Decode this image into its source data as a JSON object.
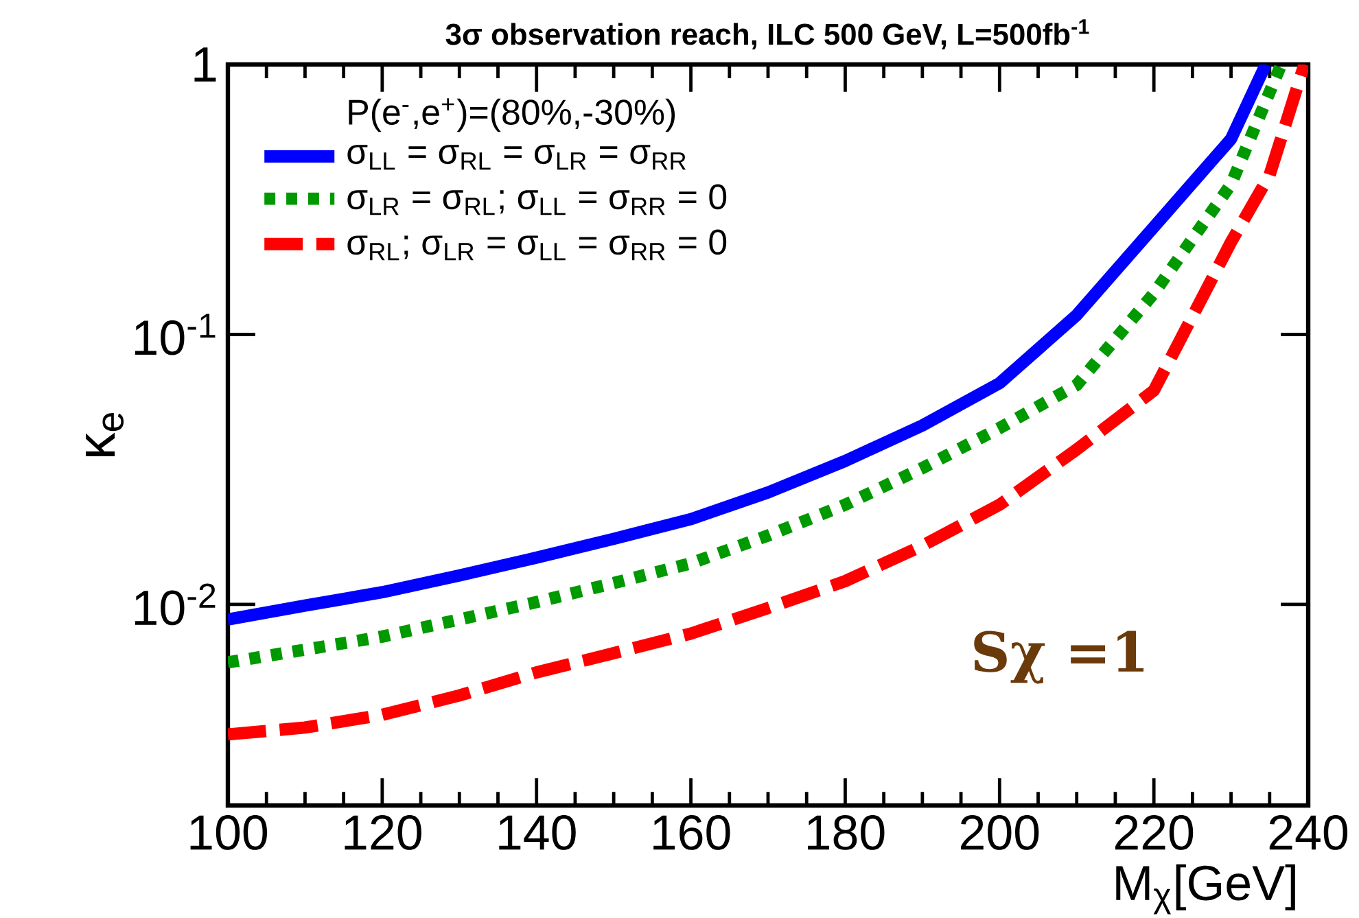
{
  "chart_data": {
    "type": "line",
    "title": "3σ observation reach, ILC 500 GeV, L=500fb$^{-1}$",
    "xlabel": "M$_{χ}$[GeV]",
    "ylabel": "κ$_{e}$",
    "legend_title": "P(e$^{-}$,e$^{+}$)=(80%,-30%)",
    "log": "y",
    "legend": "top left",
    "xlim": [
      100,
      240
    ],
    "ylim": [
      0.0018,
      1
    ],
    "xticks": [
      100,
      120,
      140,
      160,
      180,
      200,
      220,
      240
    ],
    "yticks": [
      {
        "value": 0.01,
        "label": "10$^{-2}$"
      },
      {
        "value": 0.1,
        "label": "10$^{-1}$"
      },
      {
        "value": 1,
        "label": "1"
      }
    ],
    "annotations": [
      "Sχ =1"
    ],
    "series": [
      {
        "name": "σ$_{LL}$  =  σ$_{RL}$ = σ$_{LR}$ = σ$_{RR}$",
        "color": "#0000ff",
        "line_style": "solid",
        "x": [
          100,
          110,
          120,
          130,
          140,
          150,
          160,
          170,
          180,
          190,
          200,
          210,
          220,
          230,
          234.5
        ],
        "values": [
          0.0088,
          0.0099,
          0.0111,
          0.0128,
          0.0149,
          0.0175,
          0.0207,
          0.026,
          0.034,
          0.046,
          0.066,
          0.118,
          0.25,
          0.53,
          1
        ]
      },
      {
        "name": "σ$_{LR}$  =  σ$_{RL}$;  σ$_{LL}$ = σ$_{RR}$ = 0",
        "color": "#009900",
        "line_style": "dotted",
        "x": [
          100,
          110,
          120,
          130,
          140,
          150,
          160,
          170,
          180,
          190,
          200,
          210,
          220,
          230,
          236.5
        ],
        "values": [
          0.0061,
          0.0068,
          0.0076,
          0.0088,
          0.0102,
          0.012,
          0.0142,
          0.018,
          0.0234,
          0.032,
          0.045,
          0.065,
          0.142,
          0.36,
          1
        ]
      },
      {
        "name": "σ$_{RL}$;   σ$_{LR}$ =  σ$_{LL}$ = σ$_{RR}$ = 0",
        "color": "#ff0000",
        "line_style": "dashed",
        "x": [
          100,
          110,
          120,
          130,
          140,
          150,
          160,
          170,
          180,
          190,
          200,
          210,
          220,
          230,
          235,
          239.5
        ],
        "values": [
          0.0033,
          0.0035,
          0.0039,
          0.0046,
          0.0056,
          0.0066,
          0.0078,
          0.0097,
          0.0122,
          0.0165,
          0.0234,
          0.0375,
          0.062,
          0.22,
          0.39,
          1
        ]
      }
    ]
  }
}
